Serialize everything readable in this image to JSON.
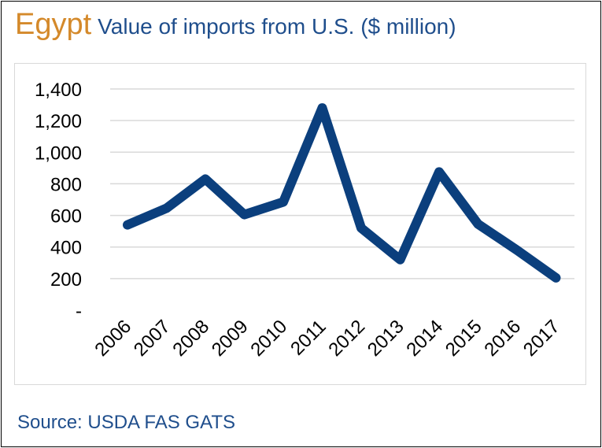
{
  "header": {
    "country": "Egypt",
    "subtitle": "Value of imports from U.S. ($ million)"
  },
  "footer": {
    "source": "Source: USDA FAS GATS"
  },
  "colors": {
    "country": "#d4892a",
    "text_blue": "#1f4e8c",
    "series_line": "#0b3f7d",
    "grid": "#d9d9d9"
  },
  "chart_data": {
    "type": "line",
    "title": "Value of imports from U.S. ($ million)",
    "xlabel": "",
    "ylabel": "",
    "categories": [
      "2006",
      "2007",
      "2008",
      "2009",
      "2010",
      "2011",
      "2012",
      "2013",
      "2014",
      "2015",
      "2016",
      "2017"
    ],
    "series": [
      {
        "values": [
          540,
          645,
          830,
          605,
          685,
          1280,
          520,
          320,
          875,
          545,
          380,
          205
        ]
      }
    ],
    "y_ticks": [
      {
        "value": 0,
        "label": "-"
      },
      {
        "value": 200,
        "label": "200"
      },
      {
        "value": 400,
        "label": "400"
      },
      {
        "value": 600,
        "label": "600"
      },
      {
        "value": 800,
        "label": "800"
      },
      {
        "value": 1000,
        "label": "1,000"
      },
      {
        "value": 1200,
        "label": "1,200"
      },
      {
        "value": 1400,
        "label": "1,400"
      }
    ],
    "ylim": [
      0,
      1400
    ],
    "grid": true,
    "legend": "none"
  }
}
